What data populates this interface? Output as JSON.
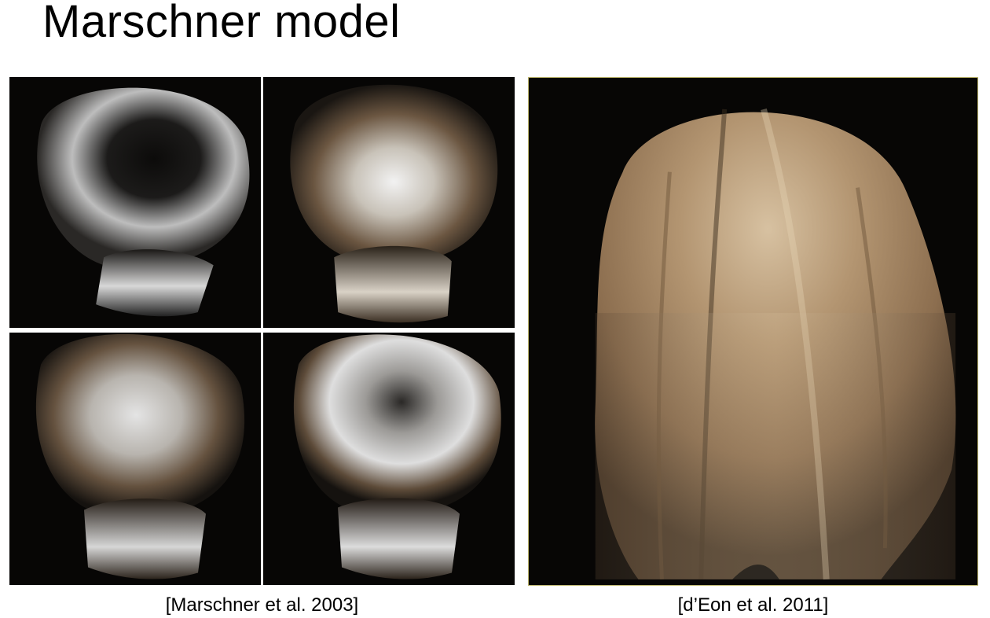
{
  "slide": {
    "title": "Marschner model",
    "left_figure": {
      "caption": "[Marschner et al. 2003]",
      "panels": [
        {
          "name": "top-left",
          "highlight_color": "#e6e6e6",
          "base_color": "#3a352f"
        },
        {
          "name": "top-right",
          "highlight_color": "#f0f0f0",
          "base_color": "#6e5740"
        },
        {
          "name": "bottom-left",
          "highlight_color": "#e0e0e0",
          "base_color": "#6a553f"
        },
        {
          "name": "bottom-right",
          "highlight_color": "#e8e8e8",
          "base_color": "#5a4c3e"
        }
      ]
    },
    "right_figure": {
      "caption": "[d’Eon et al. 2011]",
      "hair_color": "#a58560",
      "highlight_color": "#d9c3a3"
    }
  }
}
